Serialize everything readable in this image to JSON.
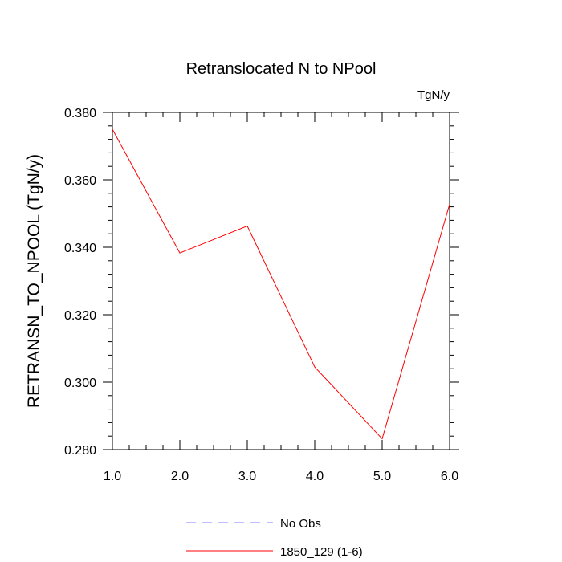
{
  "chart_data": {
    "type": "line",
    "title": "Retranslocated N to NPool",
    "units_label": "TgN/y",
    "xlabel": "",
    "ylabel": "RETRANSN_TO_NPOOL  (TgN/y)",
    "xlim": [
      1.0,
      6.0
    ],
    "ylim": [
      0.28,
      0.38
    ],
    "x_ticks": [
      1.0,
      2.0,
      3.0,
      4.0,
      5.0,
      6.0
    ],
    "x_tick_labels": [
      "1.0",
      "2.0",
      "3.0",
      "4.0",
      "5.0",
      "6.0"
    ],
    "y_ticks": [
      0.28,
      0.3,
      0.32,
      0.34,
      0.36,
      0.38
    ],
    "y_tick_labels": [
      "0.280",
      "0.300",
      "0.320",
      "0.340",
      "0.360",
      "0.380"
    ],
    "grid": false,
    "series": [
      {
        "name": "1850_129 (1-6)",
        "color": "#ff0000",
        "style": "solid",
        "x": [
          1.0,
          2.0,
          3.0,
          4.0,
          5.0,
          6.0
        ],
        "values": [
          0.375,
          0.3383,
          0.3463,
          0.3045,
          0.2832,
          0.3528
        ]
      },
      {
        "name": "No Obs",
        "color": "#8080ff",
        "style": "dashed",
        "x": [],
        "values": []
      }
    ],
    "legend": {
      "position": "bottom-center",
      "entries": [
        "No Obs",
        "1850_129 (1-6)"
      ]
    }
  }
}
